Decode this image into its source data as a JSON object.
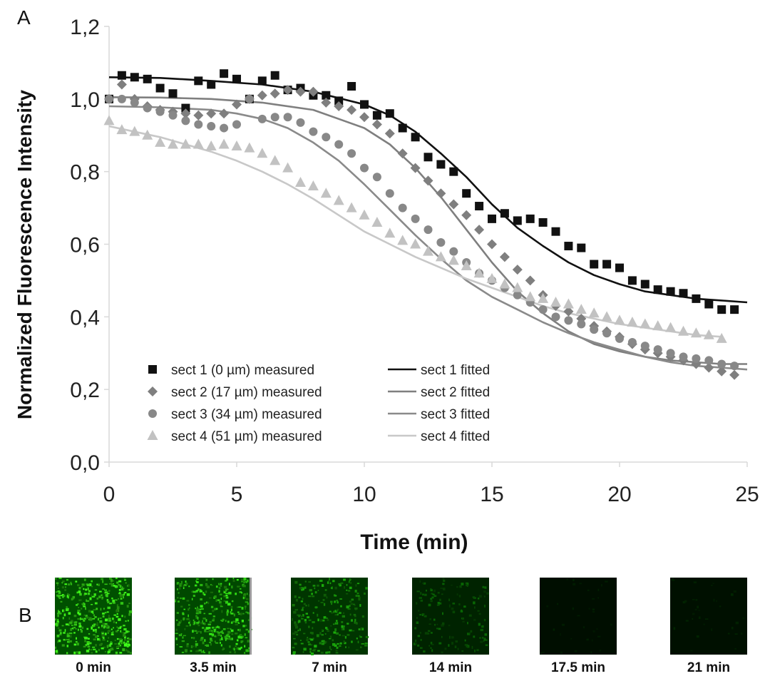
{
  "panel_a_label": "A",
  "panel_b_label": "B",
  "chart_data": {
    "type": "scatter",
    "title": "",
    "xlabel": "Time (min)",
    "ylabel": "Normalized Fluorescence Intensity",
    "xlim": [
      0,
      25
    ],
    "ylim": [
      0,
      1.2
    ],
    "xticks": [
      0,
      5,
      10,
      15,
      20,
      25
    ],
    "xtick_labels": [
      "0",
      "5",
      "10",
      "15",
      "20",
      "25"
    ],
    "yticks": [
      0,
      0.2,
      0.4,
      0.6,
      0.8,
      1.0,
      1.2
    ],
    "ytick_labels": [
      "0,0",
      "0,2",
      "0,4",
      "0,6",
      "0,8",
      "1,0",
      "1,2"
    ],
    "grid": false,
    "legend_placement": "bottom-left",
    "colors": {
      "sect1": "#111111",
      "sect2": "#7f7f7f",
      "sect3": "#888888",
      "sect4": "#c2c2c2",
      "fit1": "#111111",
      "fit2": "#7f7f7f",
      "fit3": "#8a8a8a",
      "fit4": "#c8c8c8"
    },
    "series": [
      {
        "name": "sect 1 (0 µm) measured",
        "marker": "square",
        "color_key": "sect1",
        "x": [
          0,
          0.5,
          1,
          1.5,
          2,
          2.5,
          3,
          3.5,
          4,
          4.5,
          5,
          5.5,
          6,
          6.5,
          7,
          7.5,
          8,
          8.5,
          9,
          9.5,
          10,
          10.5,
          11,
          11.5,
          12,
          12.5,
          13,
          13.5,
          14,
          14.5,
          15,
          15.5,
          16,
          16.5,
          17,
          17.5,
          18,
          18.5,
          19,
          19.5,
          20,
          20.5,
          21,
          21.5,
          22,
          22.5,
          23,
          23.5,
          24,
          24.5
        ],
        "y": [
          1.0,
          1.065,
          1.06,
          1.055,
          1.03,
          1.015,
          0.975,
          1.05,
          1.04,
          1.07,
          1.055,
          1.0,
          1.05,
          1.065,
          1.025,
          1.03,
          1.01,
          1.01,
          0.995,
          1.035,
          0.985,
          0.955,
          0.96,
          0.92,
          0.895,
          0.84,
          0.82,
          0.8,
          0.74,
          0.705,
          0.67,
          0.685,
          0.665,
          0.67,
          0.66,
          0.635,
          0.595,
          0.59,
          0.545,
          0.545,
          0.535,
          0.5,
          0.49,
          0.475,
          0.47,
          0.465,
          0.45,
          0.435,
          0.42,
          0.42
        ]
      },
      {
        "name": "sect 2 (17 µm) measured",
        "marker": "diamond",
        "color_key": "sect2",
        "x": [
          0,
          0.5,
          1,
          1.5,
          2,
          2.5,
          3,
          3.5,
          4,
          4.5,
          5,
          5.5,
          6,
          6.5,
          7,
          7.5,
          8,
          8.5,
          9,
          9.5,
          10,
          10.5,
          11,
          11.5,
          12,
          12.5,
          13,
          13.5,
          14,
          14.5,
          15,
          15.5,
          16,
          16.5,
          17,
          17.5,
          18,
          18.5,
          19,
          19.5,
          20,
          20.5,
          21,
          21.5,
          22,
          22.5,
          23,
          23.5,
          24,
          24.5
        ],
        "y": [
          1.0,
          1.04,
          1.0,
          0.98,
          0.97,
          0.965,
          0.96,
          0.955,
          0.96,
          0.96,
          0.985,
          1.0,
          1.01,
          1.015,
          1.025,
          1.02,
          1.02,
          0.99,
          0.98,
          0.97,
          0.95,
          0.93,
          0.905,
          0.85,
          0.81,
          0.775,
          0.74,
          0.71,
          0.68,
          0.64,
          0.6,
          0.565,
          0.53,
          0.5,
          0.46,
          0.43,
          0.415,
          0.395,
          0.375,
          0.36,
          0.345,
          0.325,
          0.31,
          0.3,
          0.29,
          0.28,
          0.27,
          0.26,
          0.25,
          0.24
        ]
      },
      {
        "name": "sect 3 (34 µm) measured",
        "marker": "circle",
        "color_key": "sect3",
        "x": [
          0,
          0.5,
          1,
          1.5,
          2,
          2.5,
          3,
          3.5,
          4,
          4.5,
          5,
          5.5,
          6,
          6.5,
          7,
          7.5,
          8,
          8.5,
          9,
          9.5,
          10,
          10.5,
          11,
          11.5,
          12,
          12.5,
          13,
          13.5,
          14,
          14.5,
          15,
          15.5,
          16,
          16.5,
          17,
          17.5,
          18,
          18.5,
          19,
          19.5,
          20,
          20.5,
          21,
          21.5,
          22,
          22.5,
          23,
          23.5,
          24,
          24.5
        ],
        "y": [
          1.0,
          1.0,
          0.99,
          0.975,
          0.965,
          0.955,
          0.94,
          0.93,
          0.925,
          0.92,
          0.93,
          1.0,
          0.945,
          0.95,
          0.95,
          0.935,
          0.91,
          0.895,
          0.875,
          0.85,
          0.81,
          0.785,
          0.74,
          0.7,
          0.67,
          0.64,
          0.605,
          0.58,
          0.55,
          0.52,
          0.5,
          0.48,
          0.46,
          0.44,
          0.42,
          0.4,
          0.39,
          0.38,
          0.365,
          0.355,
          0.34,
          0.33,
          0.32,
          0.31,
          0.3,
          0.29,
          0.285,
          0.28,
          0.27,
          0.265
        ]
      },
      {
        "name": "sect 4 (51 µm) measured",
        "marker": "triangle",
        "color_key": "sect4",
        "x": [
          0,
          0.5,
          1,
          1.5,
          2,
          2.5,
          3,
          3.5,
          4,
          4.5,
          5,
          5.5,
          6,
          6.5,
          7,
          7.5,
          8,
          8.5,
          9,
          9.5,
          10,
          10.5,
          11,
          11.5,
          12,
          12.5,
          13,
          13.5,
          14,
          14.5,
          15,
          15.5,
          16,
          16.5,
          17,
          17.5,
          18,
          18.5,
          19,
          19.5,
          20,
          20.5,
          21,
          21.5,
          22,
          22.5,
          23,
          23.5,
          24
        ],
        "y": [
          0.94,
          0.915,
          0.91,
          0.9,
          0.88,
          0.875,
          0.875,
          0.875,
          0.87,
          0.875,
          0.87,
          0.865,
          0.85,
          0.83,
          0.81,
          0.77,
          0.76,
          0.74,
          0.72,
          0.7,
          0.68,
          0.66,
          0.63,
          0.61,
          0.6,
          0.58,
          0.565,
          0.555,
          0.54,
          0.52,
          0.505,
          0.49,
          0.48,
          0.455,
          0.45,
          0.44,
          0.435,
          0.42,
          0.41,
          0.4,
          0.39,
          0.385,
          0.38,
          0.375,
          0.37,
          0.36,
          0.355,
          0.35,
          0.34
        ]
      },
      {
        "name": "sect 1 fitted",
        "marker": "line",
        "color_key": "fit1",
        "x": [
          0,
          2,
          4,
          6,
          8,
          10,
          11,
          12,
          13,
          14,
          15,
          16,
          17,
          18,
          19,
          20,
          21,
          22,
          23,
          24,
          25
        ],
        "y": [
          1.06,
          1.058,
          1.05,
          1.04,
          1.02,
          0.985,
          0.955,
          0.91,
          0.85,
          0.785,
          0.71,
          0.645,
          0.595,
          0.55,
          0.515,
          0.49,
          0.47,
          0.46,
          0.45,
          0.445,
          0.44
        ]
      },
      {
        "name": "sect 2 fitted",
        "marker": "line",
        "color_key": "fit2",
        "x": [
          0,
          2,
          4,
          6,
          8,
          9,
          10,
          11,
          12,
          13,
          14,
          15,
          16,
          17,
          18,
          19,
          20,
          21,
          22,
          23,
          24,
          25
        ],
        "y": [
          1.005,
          1.004,
          1.0,
          0.99,
          0.97,
          0.945,
          0.92,
          0.875,
          0.81,
          0.73,
          0.64,
          0.55,
          0.47,
          0.41,
          0.36,
          0.325,
          0.305,
          0.29,
          0.28,
          0.275,
          0.27,
          0.27
        ]
      },
      {
        "name": "sect 3 fitted",
        "marker": "line",
        "color_key": "fit3",
        "x": [
          0,
          2,
          4,
          5,
          6,
          7,
          8,
          9,
          10,
          11,
          12,
          13,
          14,
          15,
          16,
          17,
          18,
          19,
          20,
          21,
          22,
          23,
          24,
          25
        ],
        "y": [
          0.98,
          0.977,
          0.97,
          0.96,
          0.945,
          0.92,
          0.88,
          0.83,
          0.765,
          0.695,
          0.625,
          0.56,
          0.5,
          0.455,
          0.42,
          0.385,
          0.355,
          0.33,
          0.31,
          0.29,
          0.275,
          0.265,
          0.26,
          0.255
        ]
      },
      {
        "name": "sect 4 fitted",
        "marker": "line",
        "color_key": "fit4",
        "x": [
          0,
          1,
          2,
          3,
          4,
          5,
          6,
          7,
          8,
          9,
          10,
          11,
          12,
          13,
          14,
          15,
          16,
          17,
          18,
          19,
          20,
          21,
          22,
          23,
          24
        ],
        "y": [
          0.925,
          0.91,
          0.895,
          0.875,
          0.855,
          0.83,
          0.8,
          0.765,
          0.725,
          0.68,
          0.635,
          0.6,
          0.565,
          0.535,
          0.505,
          0.48,
          0.455,
          0.43,
          0.41,
          0.395,
          0.38,
          0.37,
          0.36,
          0.35,
          0.345
        ]
      }
    ]
  },
  "images": {
    "tiles": [
      {
        "caption": "0 min",
        "brightness": 1.0
      },
      {
        "caption": "3.5 min",
        "brightness": 0.88
      },
      {
        "caption": "7 min",
        "brightness": 0.62
      },
      {
        "caption": "14 min",
        "brightness": 0.35
      },
      {
        "caption": "17.5 min",
        "brightness": 0.06
      },
      {
        "caption": "21 min",
        "brightness": 0.08
      }
    ]
  }
}
